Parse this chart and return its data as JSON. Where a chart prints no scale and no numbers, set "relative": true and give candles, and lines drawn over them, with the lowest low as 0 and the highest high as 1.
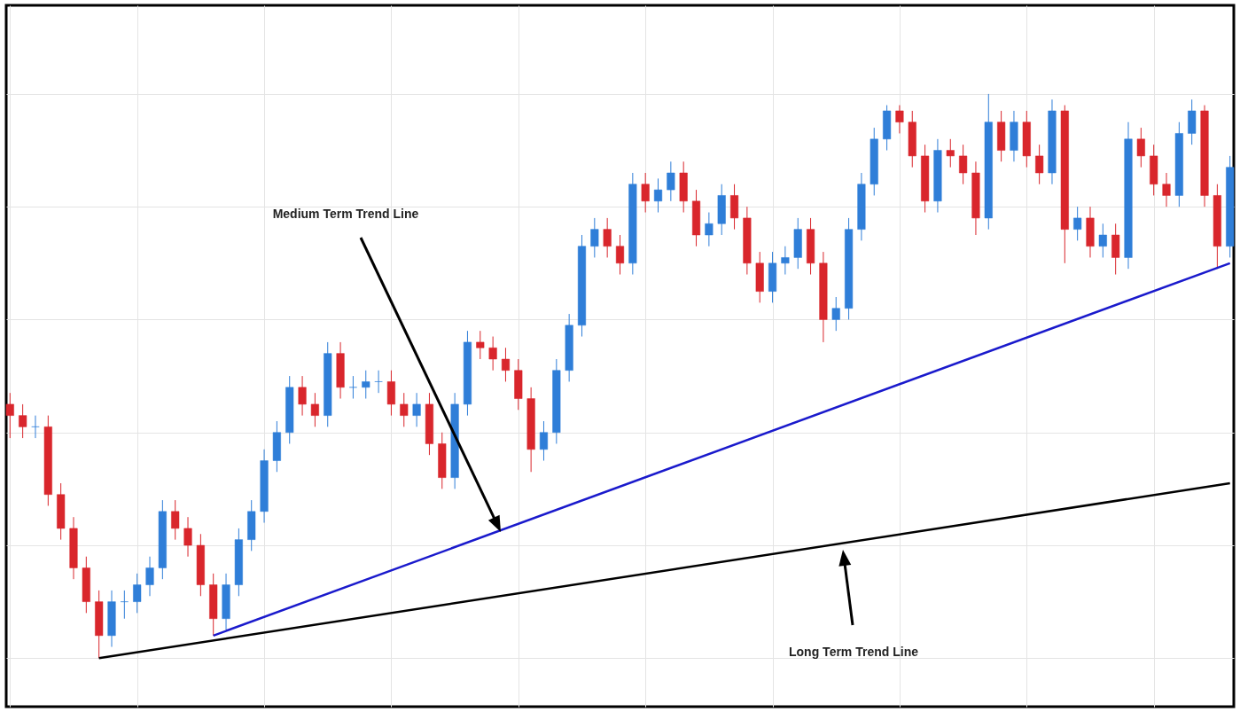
{
  "chart_data": {
    "type": "candlestick",
    "relative": true,
    "grid": true,
    "categories": [
      null,
      null,
      null,
      null,
      null,
      null,
      null,
      null,
      null,
      null,
      null,
      null,
      null,
      null,
      null,
      null,
      null,
      null,
      null,
      null,
      null,
      null,
      null,
      null,
      null,
      null,
      null,
      null,
      null,
      null,
      null,
      null,
      null,
      null,
      null,
      null,
      null,
      null,
      null,
      null,
      null,
      null,
      null,
      null,
      null,
      null,
      null,
      null,
      null,
      null,
      null,
      null,
      null,
      null,
      null,
      null,
      null,
      null,
      null,
      null,
      null,
      null,
      null,
      null,
      null,
      null,
      null,
      null,
      null,
      null,
      null,
      null,
      null,
      null,
      null,
      null,
      null,
      null,
      null,
      null,
      null,
      null,
      null,
      null,
      null,
      null,
      null,
      null,
      null,
      null,
      null,
      null,
      null,
      null,
      null,
      null,
      null
    ],
    "ohlc": [
      [
        0.45,
        0.47,
        0.39,
        0.43
      ],
      [
        0.43,
        0.45,
        0.39,
        0.41
      ],
      [
        0.41,
        0.43,
        0.39,
        0.41
      ],
      [
        0.41,
        0.43,
        0.27,
        0.29
      ],
      [
        0.29,
        0.31,
        0.21,
        0.23
      ],
      [
        0.23,
        0.25,
        0.14,
        0.16
      ],
      [
        0.16,
        0.18,
        0.08,
        0.1
      ],
      [
        0.1,
        0.12,
        0,
        0.04
      ],
      [
        0.04,
        0.12,
        0.02,
        0.1
      ],
      [
        0.1,
        0.12,
        0.07,
        0.1
      ],
      [
        0.1,
        0.15,
        0.08,
        0.13
      ],
      [
        0.13,
        0.18,
        0.11,
        0.16
      ],
      [
        0.16,
        0.28,
        0.14,
        0.26
      ],
      [
        0.26,
        0.28,
        0.21,
        0.23
      ],
      [
        0.23,
        0.25,
        0.18,
        0.2
      ],
      [
        0.2,
        0.22,
        0.11,
        0.13
      ],
      [
        0.13,
        0.15,
        0.04,
        0.07
      ],
      [
        0.07,
        0.15,
        0.05,
        0.13
      ],
      [
        0.13,
        0.23,
        0.11,
        0.21
      ],
      [
        0.21,
        0.28,
        0.19,
        0.26
      ],
      [
        0.26,
        0.37,
        0.24,
        0.35
      ],
      [
        0.35,
        0.42,
        0.33,
        0.4
      ],
      [
        0.4,
        0.5,
        0.38,
        0.48
      ],
      [
        0.48,
        0.5,
        0.43,
        0.45
      ],
      [
        0.45,
        0.47,
        0.41,
        0.43
      ],
      [
        0.43,
        0.56,
        0.41,
        0.54
      ],
      [
        0.54,
        0.56,
        0.46,
        0.48
      ],
      [
        0.48,
        0.5,
        0.46,
        0.48
      ],
      [
        0.48,
        0.51,
        0.46,
        0.49
      ],
      [
        0.49,
        0.51,
        0.47,
        0.49
      ],
      [
        0.49,
        0.51,
        0.43,
        0.45
      ],
      [
        0.45,
        0.47,
        0.41,
        0.43
      ],
      [
        0.43,
        0.47,
        0.41,
        0.45
      ],
      [
        0.45,
        0.47,
        0.36,
        0.38
      ],
      [
        0.38,
        0.4,
        0.3,
        0.32
      ],
      [
        0.32,
        0.47,
        0.3,
        0.45
      ],
      [
        0.45,
        0.58,
        0.43,
        0.56
      ],
      [
        0.56,
        0.58,
        0.53,
        0.55
      ],
      [
        0.55,
        0.57,
        0.51,
        0.53
      ],
      [
        0.53,
        0.55,
        0.49,
        0.51
      ],
      [
        0.51,
        0.53,
        0.44,
        0.46
      ],
      [
        0.46,
        0.48,
        0.33,
        0.37
      ],
      [
        0.37,
        0.42,
        0.35,
        0.4
      ],
      [
        0.4,
        0.53,
        0.38,
        0.51
      ],
      [
        0.51,
        0.61,
        0.49,
        0.59
      ],
      [
        0.59,
        0.75,
        0.57,
        0.73
      ],
      [
        0.73,
        0.78,
        0.71,
        0.76
      ],
      [
        0.76,
        0.78,
        0.71,
        0.73
      ],
      [
        0.73,
        0.75,
        0.68,
        0.7
      ],
      [
        0.7,
        0.86,
        0.68,
        0.84
      ],
      [
        0.84,
        0.86,
        0.79,
        0.81
      ],
      [
        0.81,
        0.85,
        0.79,
        0.83
      ],
      [
        0.83,
        0.88,
        0.81,
        0.86
      ],
      [
        0.86,
        0.88,
        0.79,
        0.81
      ],
      [
        0.81,
        0.83,
        0.73,
        0.75
      ],
      [
        0.75,
        0.79,
        0.73,
        0.77
      ],
      [
        0.77,
        0.84,
        0.75,
        0.82
      ],
      [
        0.82,
        0.84,
        0.76,
        0.78
      ],
      [
        0.78,
        0.8,
        0.68,
        0.7
      ],
      [
        0.7,
        0.72,
        0.63,
        0.65
      ],
      [
        0.65,
        0.72,
        0.63,
        0.7
      ],
      [
        0.7,
        0.73,
        0.68,
        0.71
      ],
      [
        0.71,
        0.78,
        0.69,
        0.76
      ],
      [
        0.76,
        0.78,
        0.68,
        0.7
      ],
      [
        0.7,
        0.72,
        0.56,
        0.6
      ],
      [
        0.6,
        0.64,
        0.58,
        0.62
      ],
      [
        0.62,
        0.78,
        0.6,
        0.76
      ],
      [
        0.76,
        0.86,
        0.74,
        0.84
      ],
      [
        0.84,
        0.94,
        0.82,
        0.92
      ],
      [
        0.92,
        0.98,
        0.9,
        0.97
      ],
      [
        0.97,
        0.98,
        0.93,
        0.95
      ],
      [
        0.95,
        0.97,
        0.87,
        0.89
      ],
      [
        0.89,
        0.91,
        0.79,
        0.81
      ],
      [
        0.81,
        0.92,
        0.79,
        0.9
      ],
      [
        0.9,
        0.92,
        0.87,
        0.89
      ],
      [
        0.89,
        0.91,
        0.84,
        0.86
      ],
      [
        0.86,
        0.88,
        0.75,
        0.78
      ],
      [
        0.78,
        1,
        0.76,
        0.95
      ],
      [
        0.95,
        0.97,
        0.88,
        0.9
      ],
      [
        0.9,
        0.97,
        0.88,
        0.95
      ],
      [
        0.95,
        0.97,
        0.87,
        0.89
      ],
      [
        0.89,
        0.91,
        0.84,
        0.86
      ],
      [
        0.86,
        0.99,
        0.84,
        0.97
      ],
      [
        0.97,
        0.98,
        0.7,
        0.76
      ],
      [
        0.76,
        0.8,
        0.74,
        0.78
      ],
      [
        0.78,
        0.8,
        0.71,
        0.73
      ],
      [
        0.73,
        0.77,
        0.71,
        0.75
      ],
      [
        0.75,
        0.77,
        0.68,
        0.71
      ],
      [
        0.71,
        0.95,
        0.69,
        0.92
      ],
      [
        0.92,
        0.94,
        0.87,
        0.89
      ],
      [
        0.89,
        0.91,
        0.82,
        0.84
      ],
      [
        0.84,
        0.86,
        0.8,
        0.82
      ],
      [
        0.82,
        0.95,
        0.8,
        0.93
      ],
      [
        0.93,
        0.99,
        0.91,
        0.97
      ],
      [
        0.97,
        0.98,
        0.8,
        0.82
      ],
      [
        0.82,
        0.84,
        0.69,
        0.73
      ],
      [
        0.73,
        0.89,
        0.71,
        0.87
      ]
    ],
    "colors": [
      "#d9262c",
      "#d9262c",
      "#2f7ed8",
      "#d9262c",
      "#d9262c",
      "#d9262c",
      "#d9262c",
      "#d9262c",
      "#2f7ed8",
      "#2f7ed8",
      "#2f7ed8",
      "#2f7ed8",
      "#2f7ed8",
      "#d9262c",
      "#d9262c",
      "#d9262c",
      "#d9262c",
      "#2f7ed8",
      "#2f7ed8",
      "#2f7ed8",
      "#2f7ed8",
      "#2f7ed8",
      "#2f7ed8",
      "#d9262c",
      "#d9262c",
      "#2f7ed8",
      "#d9262c",
      "#2f7ed8",
      "#2f7ed8",
      "#2f7ed8",
      "#d9262c",
      "#d9262c",
      "#2f7ed8",
      "#d9262c",
      "#d9262c",
      "#2f7ed8",
      "#2f7ed8",
      "#d9262c",
      "#d9262c",
      "#d9262c",
      "#d9262c",
      "#d9262c",
      "#2f7ed8",
      "#2f7ed8",
      "#2f7ed8",
      "#2f7ed8",
      "#2f7ed8",
      "#d9262c",
      "#d9262c",
      "#2f7ed8",
      "#d9262c",
      "#2f7ed8",
      "#2f7ed8",
      "#d9262c",
      "#d9262c",
      "#2f7ed8",
      "#2f7ed8",
      "#d9262c",
      "#d9262c",
      "#d9262c",
      "#2f7ed8",
      "#2f7ed8",
      "#2f7ed8",
      "#d9262c",
      "#d9262c",
      "#2f7ed8",
      "#2f7ed8",
      "#2f7ed8",
      "#2f7ed8",
      "#2f7ed8",
      "#d9262c",
      "#d9262c",
      "#d9262c",
      "#2f7ed8",
      "#d9262c",
      "#d9262c",
      "#d9262c",
      "#2f7ed8",
      "#d9262c",
      "#2f7ed8",
      "#d9262c",
      "#d9262c",
      "#2f7ed8",
      "#d9262c",
      "#2f7ed8",
      "#d9262c",
      "#2f7ed8",
      "#d9262c",
      "#2f7ed8",
      "#d9262c",
      "#d9262c",
      "#d9262c",
      "#2f7ed8",
      "#2f7ed8",
      "#d9262c",
      "#d9262c",
      "#2f7ed8"
    ],
    "series": [
      {
        "type": "line",
        "color": "#000000",
        "values": [
          null,
          null,
          null,
          null,
          null,
          null,
          null,
          0,
          null,
          null,
          null,
          null,
          null,
          null,
          null,
          null,
          null,
          null,
          null,
          null,
          null,
          null,
          null,
          null,
          null,
          null,
          null,
          null,
          null,
          null,
          null,
          null,
          null,
          null,
          null,
          null,
          null,
          null,
          null,
          null,
          null,
          null,
          null,
          null,
          null,
          null,
          null,
          null,
          null,
          null,
          null,
          null,
          null,
          null,
          null,
          null,
          null,
          null,
          null,
          null,
          null,
          null,
          null,
          null,
          null,
          null,
          null,
          null,
          null,
          null,
          null,
          null,
          null,
          null,
          null,
          null,
          null,
          null,
          null,
          null,
          null,
          null,
          null,
          null,
          null,
          null,
          null,
          null,
          null,
          null,
          null,
          null,
          null,
          null,
          null,
          null,
          0.31
        ]
      },
      {
        "type": "line",
        "color": "#1a1acc",
        "values": [
          null,
          null,
          null,
          null,
          null,
          null,
          null,
          null,
          null,
          null,
          null,
          null,
          null,
          null,
          null,
          null,
          0.04,
          null,
          null,
          null,
          null,
          null,
          null,
          null,
          null,
          null,
          null,
          null,
          null,
          null,
          null,
          null,
          null,
          null,
          null,
          null,
          null,
          null,
          null,
          null,
          null,
          null,
          null,
          null,
          null,
          null,
          null,
          null,
          null,
          null,
          null,
          null,
          null,
          null,
          null,
          null,
          null,
          null,
          null,
          null,
          null,
          null,
          null,
          null,
          null,
          null,
          null,
          null,
          null,
          null,
          null,
          null,
          null,
          null,
          null,
          null,
          null,
          null,
          null,
          null,
          null,
          null,
          null,
          null,
          null,
          null,
          null,
          null,
          null,
          null,
          null,
          null,
          null,
          null,
          null,
          null,
          0.7
        ]
      }
    ],
    "annotations": [
      "Medium Term Trend Line",
      "Long Term Trend Line"
    ]
  }
}
